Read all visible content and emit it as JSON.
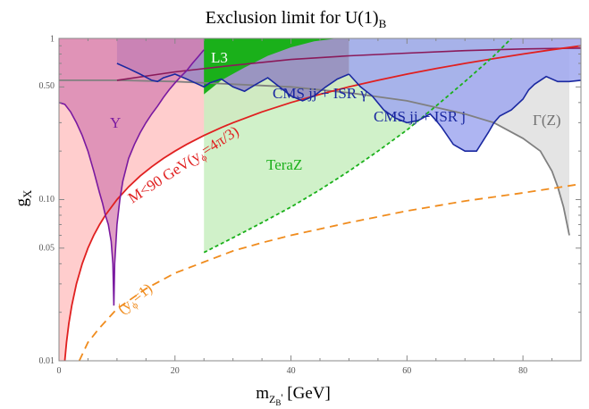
{
  "chart_data": {
    "type": "area",
    "title": "Exclusion limit for U(1)",
    "title_sub": "B",
    "xlabel_main": "m",
    "xlabel_sub": "Z",
    "xlabel_subsub": "B",
    "xlabel_prime": "'",
    "xlabel_unit": " [GeV]",
    "ylabel_main": "g",
    "ylabel_sub": "X",
    "x_range": [
      0,
      90
    ],
    "y_range": [
      0.01,
      1
    ],
    "y_scale": "log",
    "grid": false,
    "x_ticks": [
      {
        "value": 0,
        "label": "0"
      },
      {
        "value": 20,
        "label": "20"
      },
      {
        "value": 40,
        "label": "40"
      },
      {
        "value": 60,
        "label": "60"
      },
      {
        "value": 80,
        "label": "80"
      }
    ],
    "y_ticks": [
      {
        "value": 0.01,
        "label": "0.01"
      },
      {
        "value": 0.05,
        "label": "0.05"
      },
      {
        "value": 0.1,
        "label": "0.10"
      },
      {
        "value": 0.5,
        "label": "0.50"
      },
      {
        "value": 1,
        "label": "1"
      }
    ],
    "colors": {
      "upsilon_fill": "#d680b0",
      "upsilon_line": "#7a1aa0",
      "red_fill": "#ffc8c8",
      "red_line": "#e02020",
      "cms_isr_gamma_fill": "#8878c0",
      "cms_line": "#1a28a0",
      "cms_isr_j_fill": "#a0a8f0",
      "l3_fill": "#1ab01a",
      "teraz_fill": "#c8eec0",
      "teraz_line": "#1ab01a",
      "gammaz_fill": "#e4e4e4",
      "gammaz_line": "#808080",
      "orange_line": "#f08c1e",
      "dark_purple_line": "#8a1a5a"
    },
    "series": [
      {
        "name": "Υ",
        "kind": "filled",
        "x": [
          0,
          1,
          2,
          3,
          4,
          5,
          6,
          7,
          7.5,
          8,
          8.5,
          9,
          9.3,
          9.46,
          9.6,
          10,
          10.5,
          11,
          12,
          13,
          14,
          15,
          16,
          17,
          18,
          19,
          20,
          21,
          22,
          23,
          24,
          25
        ],
        "y": [
          0.4,
          0.39,
          0.35,
          0.3,
          0.25,
          0.2,
          0.15,
          0.11,
          0.095,
          0.08,
          0.07,
          0.055,
          0.04,
          0.022,
          0.04,
          0.07,
          0.1,
          0.13,
          0.18,
          0.22,
          0.26,
          0.3,
          0.34,
          0.38,
          0.43,
          0.48,
          0.53,
          0.58,
          0.63,
          0.7,
          0.77,
          0.85
        ]
      },
      {
        "name": "M<90 GeV(y",
        "label_sub": "ϕ",
        "label_rest": "=4π/3)",
        "kind": "filled",
        "x": [
          1,
          1.3,
          1.7,
          2.2,
          3,
          4,
          5,
          6,
          7,
          8,
          10,
          12,
          14,
          16,
          18,
          20,
          22,
          25,
          28,
          30,
          35,
          40,
          45,
          50,
          55,
          60,
          65,
          70,
          75,
          80,
          85,
          90
        ],
        "y": [
          0.01,
          0.013,
          0.017,
          0.022,
          0.03,
          0.04,
          0.05,
          0.06,
          0.07,
          0.08,
          0.1,
          0.12,
          0.14,
          0.16,
          0.18,
          0.2,
          0.22,
          0.25,
          0.28,
          0.3,
          0.35,
          0.4,
          0.45,
          0.5,
          0.55,
          0.6,
          0.65,
          0.7,
          0.75,
          0.8,
          0.85,
          0.9
        ]
      },
      {
        "name": "CMS jj + ISR γ",
        "kind": "filled",
        "x": [
          10,
          12,
          14,
          16,
          17,
          18,
          20,
          22,
          24,
          25,
          26,
          28,
          30,
          32,
          34,
          36,
          38,
          40,
          42,
          44,
          46,
          48,
          50
        ],
        "y": [
          0.7,
          0.65,
          0.6,
          0.55,
          0.54,
          0.57,
          0.6,
          0.56,
          0.52,
          0.5,
          0.53,
          0.56,
          0.5,
          0.47,
          0.52,
          0.57,
          0.5,
          0.44,
          0.41,
          0.44,
          0.5,
          0.56,
          0.6
        ]
      },
      {
        "name": "CMS jj + ISR j",
        "kind": "filled",
        "x": [
          50,
          52,
          54,
          56,
          58,
          60,
          62,
          64,
          65,
          66,
          68,
          70,
          72,
          74,
          75,
          76,
          78,
          80,
          81,
          82,
          84,
          86,
          88,
          90
        ],
        "y": [
          0.6,
          0.5,
          0.44,
          0.36,
          0.32,
          0.3,
          0.31,
          0.34,
          0.31,
          0.28,
          0.22,
          0.2,
          0.2,
          0.26,
          0.3,
          0.33,
          0.36,
          0.42,
          0.48,
          0.52,
          0.58,
          0.54,
          0.54,
          0.55
        ]
      },
      {
        "name": "L3",
        "kind": "filled",
        "x": [
          25,
          28,
          32,
          36,
          40,
          44,
          48
        ],
        "y": [
          0.45,
          0.55,
          0.66,
          0.78,
          0.88,
          0.96,
          1.0
        ]
      },
      {
        "name": "TeraZ",
        "kind": "filled",
        "x": [
          25,
          30,
          35,
          40,
          45,
          50,
          55,
          60,
          65,
          70,
          75,
          78
        ],
        "y": [
          0.047,
          0.058,
          0.072,
          0.09,
          0.115,
          0.15,
          0.2,
          0.27,
          0.38,
          0.54,
          0.78,
          1.0
        ]
      },
      {
        "name": "Γ(Z)",
        "kind": "filled",
        "x": [
          0,
          10,
          20,
          30,
          40,
          50,
          60,
          70,
          75,
          80,
          83,
          85,
          86,
          87,
          88
        ],
        "y": [
          0.55,
          0.55,
          0.54,
          0.52,
          0.5,
          0.46,
          0.41,
          0.34,
          0.3,
          0.24,
          0.2,
          0.15,
          0.12,
          0.09,
          0.06
        ]
      },
      {
        "name": "(y",
        "label_sub": "ϕ",
        "label_rest": "=1)",
        "kind": "line",
        "x": [
          3.5,
          5,
          7,
          10,
          15,
          20,
          25,
          30,
          35,
          40,
          50,
          60,
          70,
          80,
          90
        ],
        "y": [
          0.01,
          0.013,
          0.016,
          0.021,
          0.028,
          0.035,
          0.041,
          0.048,
          0.054,
          0.06,
          0.072,
          0.085,
          0.098,
          0.11,
          0.125
        ]
      },
      {
        "name": "",
        "kind": "line",
        "x": [
          10,
          20,
          30,
          40,
          50,
          60,
          70,
          80,
          90
        ],
        "y": [
          0.55,
          0.62,
          0.68,
          0.74,
          0.78,
          0.81,
          0.84,
          0.86,
          0.87
        ]
      }
    ]
  }
}
